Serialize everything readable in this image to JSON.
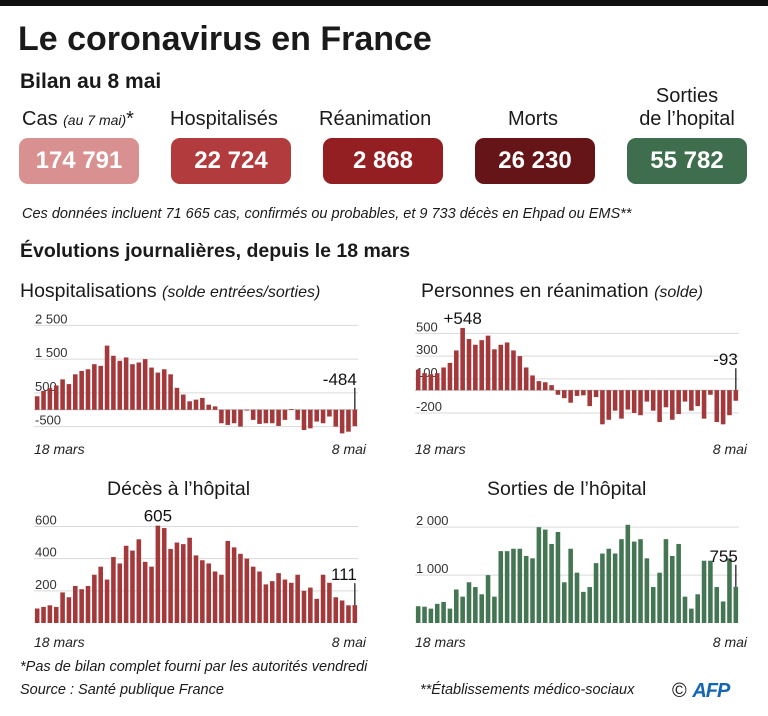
{
  "title": "Le coronavirus en France",
  "subtitle": "Bilan au 8 mai",
  "stats": [
    {
      "label": "Cas",
      "label_note": "(au 7 mai)",
      "label_mark": "*",
      "value": "174 791",
      "color": "#d99090"
    },
    {
      "label": "Hospitalisés",
      "value": "22 724",
      "color": "#b23b3e"
    },
    {
      "label": "Réanimation",
      "value": "2 868",
      "color": "#931f23"
    },
    {
      "label": "Morts",
      "value": "26 230",
      "color": "#651517"
    },
    {
      "label_line1": "Sorties",
      "label_line2": "de l’hopital",
      "value": "55 782",
      "color": "#3e6e4e"
    }
  ],
  "note": "Ces données incluent 71 665 cas, confirmés ou probables, et 9 733 décès en Ehpad ou EMS**",
  "section_title": "Évolutions journalières, depuis le 18 mars",
  "chart_data": [
    {
      "type": "bar",
      "title": "Hospitalisations",
      "title_note": "(solde entrées/sorties)",
      "color": "#a4393b",
      "ylim": [
        -600,
        2600
      ],
      "yticks": [
        {
          "v": 2500,
          "l": "2 500"
        },
        {
          "v": 1500,
          "l": "1 500"
        },
        {
          "v": 500,
          "l": "500"
        },
        {
          "v": -500,
          "l": "-500"
        }
      ],
      "x_start_label": "18 mars",
      "x_end_label": "8 mai",
      "annotations": [
        {
          "index": 50,
          "text": "-484"
        }
      ],
      "values": [
        400,
        560,
        640,
        720,
        900,
        760,
        1050,
        1150,
        1200,
        1350,
        1300,
        1900,
        1600,
        1450,
        1550,
        1350,
        1400,
        1500,
        1250,
        1100,
        1200,
        1050,
        650,
        450,
        250,
        300,
        350,
        150,
        100,
        -400,
        -450,
        -400,
        -500,
        0,
        -300,
        -420,
        -400,
        -400,
        -480,
        -300,
        20,
        -300,
        -600,
        -550,
        -350,
        -400,
        -200,
        -500,
        -700,
        -650,
        -484
      ]
    },
    {
      "type": "bar",
      "title": "Personnes en réanimation",
      "title_note": "(solde)",
      "color": "#a4393b",
      "ylim": [
        -350,
        600
      ],
      "yticks": [
        {
          "v": 500,
          "l": "500"
        },
        {
          "v": 300,
          "l": "300"
        },
        {
          "v": 100,
          "l": "100"
        },
        {
          "v": -200,
          "l": "-200"
        }
      ],
      "x_start_label": "18 mars",
      "x_end_label": "8 mai",
      "annotations": [
        {
          "index": 7,
          "text": "+548"
        },
        {
          "index": 50,
          "text": "-93"
        }
      ],
      "values": [
        180,
        150,
        140,
        150,
        200,
        240,
        350,
        548,
        450,
        400,
        440,
        480,
        360,
        400,
        420,
        350,
        300,
        200,
        130,
        80,
        70,
        45,
        -40,
        -70,
        -110,
        -50,
        -45,
        -140,
        -60,
        -300,
        -260,
        -180,
        -250,
        -170,
        -200,
        -220,
        -100,
        -180,
        -280,
        -150,
        -260,
        -210,
        -100,
        -180,
        -140,
        -250,
        -40,
        -280,
        -300,
        -220,
        -93
      ]
    },
    {
      "type": "bar",
      "title": "Décès à l’hôpital",
      "color": "#a4393b",
      "ylim": [
        0,
        640
      ],
      "yticks": [
        {
          "v": 600,
          "l": "600"
        },
        {
          "v": 400,
          "l": "400"
        },
        {
          "v": 200,
          "l": "200"
        }
      ],
      "x_start_label": "18 mars",
      "x_end_label": "8 mai",
      "annotations": [
        {
          "index": 19,
          "text": "605"
        },
        {
          "index": 50,
          "text": "111"
        }
      ],
      "values": [
        90,
        100,
        110,
        100,
        190,
        160,
        230,
        210,
        230,
        300,
        350,
        270,
        410,
        370,
        480,
        450,
        520,
        380,
        350,
        605,
        590,
        460,
        500,
        490,
        530,
        420,
        390,
        370,
        320,
        300,
        510,
        470,
        430,
        400,
        350,
        320,
        240,
        260,
        310,
        270,
        250,
        300,
        200,
        220,
        150,
        300,
        250,
        160,
        140,
        110,
        111
      ]
    },
    {
      "type": "bar",
      "title": "Sorties de l’hôpital",
      "color": "#447654",
      "ylim": [
        0,
        2150
      ],
      "yticks": [
        {
          "v": 2000,
          "l": "2 000"
        },
        {
          "v": 1000,
          "l": "1 000"
        }
      ],
      "x_start_label": "18 mars",
      "x_end_label": "8 mai",
      "annotations": [
        {
          "index": 50,
          "text": "755"
        }
      ],
      "values": [
        350,
        340,
        300,
        400,
        440,
        300,
        700,
        550,
        850,
        750,
        600,
        1000,
        550,
        1500,
        1500,
        1550,
        1550,
        1400,
        1350,
        2000,
        1950,
        1650,
        1900,
        850,
        1550,
        1050,
        650,
        750,
        1250,
        1450,
        1550,
        1450,
        1750,
        2050,
        1700,
        1750,
        1350,
        750,
        1050,
        1750,
        1400,
        1650,
        550,
        300,
        600,
        1300,
        1300,
        750,
        450,
        1350,
        755
      ]
    }
  ],
  "footnotes": {
    "star": "*Pas de bilan complet fourni par les autorités vendredi",
    "source": "Source : Santé publique France",
    "ems": "**Établissements médico-sociaux",
    "copyright": "©",
    "brand": "AFP"
  }
}
